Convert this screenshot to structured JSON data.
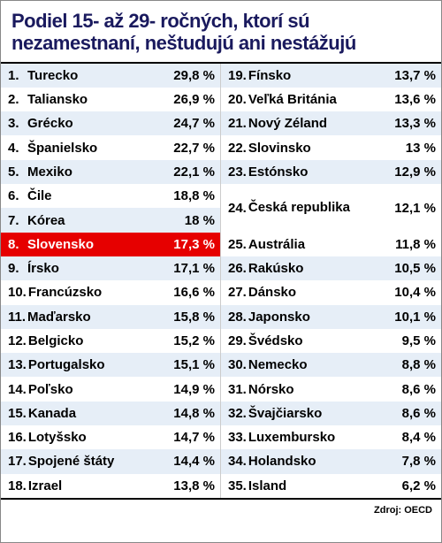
{
  "title_line1": "Podiel 15- až 29- ročných, ktorí sú",
  "title_line2": "nezamestnaní, neštudujú ani nestážujú",
  "source_label": "Zdroj: OECD",
  "stripe_light": "#e6eef7",
  "stripe_white": "#ffffff",
  "highlight_bg": "#e60000",
  "highlight_fg": "#ffffff",
  "title_color": "#1a1a5e",
  "left": [
    {
      "rank": "1.",
      "country": "Turecko",
      "pct": "29,8 %",
      "highlight": false
    },
    {
      "rank": "2.",
      "country": "Taliansko",
      "pct": "26,9 %",
      "highlight": false
    },
    {
      "rank": "3.",
      "country": "Grécko",
      "pct": "24,7 %",
      "highlight": false
    },
    {
      "rank": "4.",
      "country": "Španielsko",
      "pct": "22,7 %",
      "highlight": false
    },
    {
      "rank": "5.",
      "country": "Mexiko",
      "pct": "22,1 %",
      "highlight": false
    },
    {
      "rank": "6.",
      "country": "Čile",
      "pct": "18,8 %",
      "highlight": false
    },
    {
      "rank": "7.",
      "country": "Kórea",
      "pct": "18 %",
      "highlight": false
    },
    {
      "rank": "8.",
      "country": "Slovensko",
      "pct": "17,3 %",
      "highlight": true
    },
    {
      "rank": "9.",
      "country": "Írsko",
      "pct": "17,1 %",
      "highlight": false
    },
    {
      "rank": "10.",
      "country": "Francúzsko",
      "pct": "16,6 %",
      "highlight": false
    },
    {
      "rank": "11.",
      "country": "Maďarsko",
      "pct": "15,8 %",
      "highlight": false
    },
    {
      "rank": "12.",
      "country": "Belgicko",
      "pct": "15,2 %",
      "highlight": false
    },
    {
      "rank": "13.",
      "country": "Portugalsko",
      "pct": "15,1 %",
      "highlight": false
    },
    {
      "rank": "14.",
      "country": "Poľsko",
      "pct": "14,9 %",
      "highlight": false
    },
    {
      "rank": "15.",
      "country": "Kanada",
      "pct": "14,8 %",
      "highlight": false
    },
    {
      "rank": "16.",
      "country": "Lotyšsko",
      "pct": "14,7 %",
      "highlight": false
    },
    {
      "rank": "17.",
      "country": "Spojené štáty",
      "pct": "14,4 %",
      "highlight": false
    },
    {
      "rank": "18.",
      "country": "Izrael",
      "pct": "13,8 %",
      "highlight": false
    }
  ],
  "right": [
    {
      "rank": "19.",
      "country": "Fínsko",
      "pct": "13,7 %",
      "highlight": false
    },
    {
      "rank": "20.",
      "country": "Veľká Británia",
      "pct": "13,6 %",
      "highlight": false
    },
    {
      "rank": "21.",
      "country": "Nový Zéland",
      "pct": "13,3 %",
      "highlight": false
    },
    {
      "rank": "22.",
      "country": "Slovinsko",
      "pct": "13 %",
      "highlight": false
    },
    {
      "rank": "23.",
      "country": "Estónsko",
      "pct": "12,9 %",
      "highlight": false
    },
    {
      "rank": "24.",
      "country": "Česká republika",
      "pct": "12,1 %",
      "highlight": false,
      "tall": true
    },
    {
      "rank": "25.",
      "country": "Austrália",
      "pct": "11,8 %",
      "highlight": false
    },
    {
      "rank": "26.",
      "country": "Rakúsko",
      "pct": "10,5 %",
      "highlight": false
    },
    {
      "rank": "27.",
      "country": "Dánsko",
      "pct": "10,4 %",
      "highlight": false
    },
    {
      "rank": "28.",
      "country": "Japonsko",
      "pct": "10,1 %",
      "highlight": false
    },
    {
      "rank": "29.",
      "country": "Švédsko",
      "pct": "9,5 %",
      "highlight": false
    },
    {
      "rank": "30.",
      "country": "Nemecko",
      "pct": "8,8 %",
      "highlight": false
    },
    {
      "rank": "31.",
      "country": "Nórsko",
      "pct": "8,6 %",
      "highlight": false
    },
    {
      "rank": "32.",
      "country": "Švajčiarsko",
      "pct": "8,6 %",
      "highlight": false
    },
    {
      "rank": "33.",
      "country": "Luxembursko",
      "pct": "8,4 %",
      "highlight": false
    },
    {
      "rank": "34.",
      "country": "Holandsko",
      "pct": "7,8 %",
      "highlight": false
    },
    {
      "rank": "35.",
      "country": "Island",
      "pct": "6,2 %",
      "highlight": false
    }
  ]
}
